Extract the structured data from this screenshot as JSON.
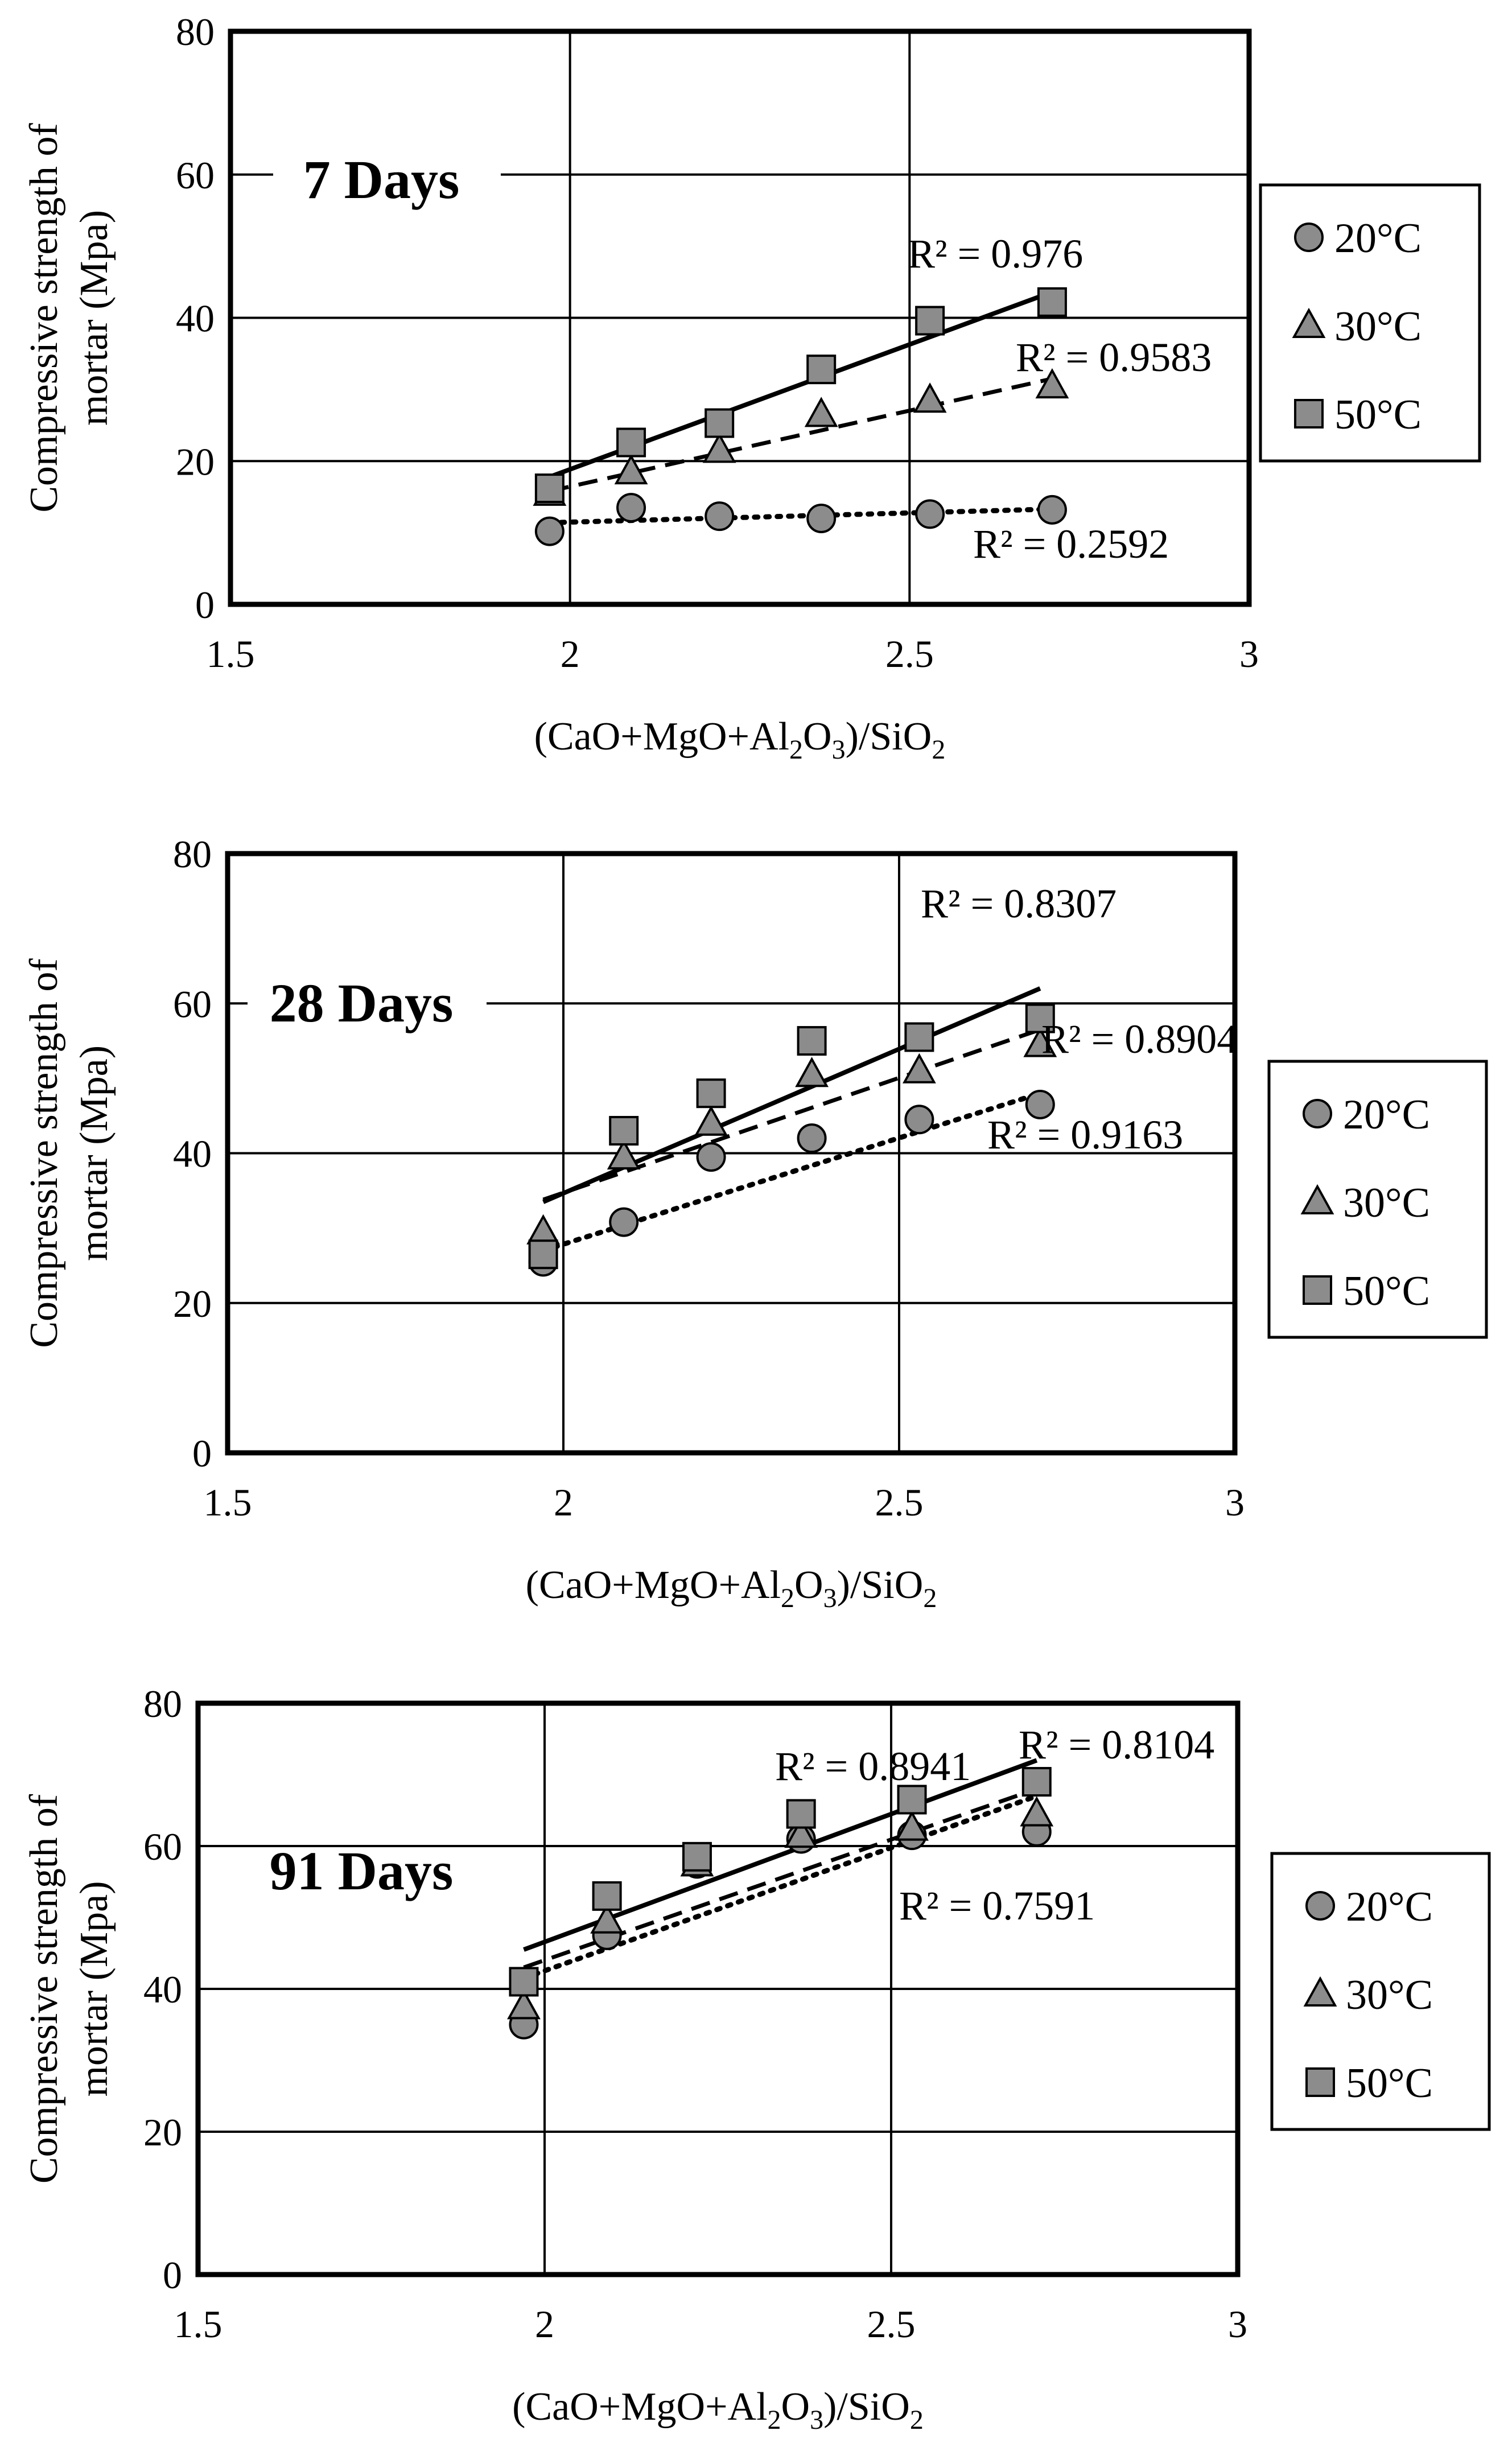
{
  "chart_data": [
    {
      "type": "scatter",
      "title": "7 Days",
      "xlabel": "(CaO+MgO+Al2O3)/SiO2",
      "xlabel_parts": [
        "(CaO+MgO+Al",
        "2",
        "O",
        "3",
        ")/SiO",
        "2"
      ],
      "ylabel_lines": [
        "Compressive strength of",
        "mortar (Mpa)"
      ],
      "xlim": [
        1.5,
        3
      ],
      "ylim": [
        0,
        80
      ],
      "xticks": [
        "1.5",
        "2",
        "2.5",
        "3"
      ],
      "yticks": [
        "0",
        "20",
        "40",
        "60",
        "80"
      ],
      "grid": "on",
      "legend_position": "right",
      "series": [
        {
          "name": "20°C",
          "marker": "circle",
          "x": [
            1.97,
            2.09,
            2.22,
            2.37,
            2.53,
            2.71
          ],
          "y": [
            10.2,
            13.5,
            12.3,
            12.0,
            12.6,
            13.2
          ],
          "fit": [
            11.4,
            13.3
          ],
          "fit_style": "dotted",
          "r2": "R² = 0.2592"
        },
        {
          "name": "30°C",
          "marker": "triangle",
          "x": [
            1.97,
            2.09,
            2.22,
            2.37,
            2.53,
            2.71
          ],
          "y": [
            15.5,
            18.5,
            21.5,
            26.5,
            28.5,
            30.5
          ],
          "fit": [
            15.8,
            31.5
          ],
          "fit_style": "dashed",
          "r2": "R² = 0.9583"
        },
        {
          "name": "50°C",
          "marker": "square",
          "x": [
            1.97,
            2.09,
            2.22,
            2.37,
            2.53,
            2.71
          ],
          "y": [
            16.2,
            22.6,
            25.3,
            32.8,
            39.6,
            42.2
          ],
          "fit": [
            17.8,
            43.6
          ],
          "fit_style": "solid",
          "r2": "R² = 0.976"
        }
      ]
    },
    {
      "type": "scatter",
      "title": "28 Days",
      "xlabel": "(CaO+MgO+Al2O3)/SiO2",
      "xlabel_parts": [
        "(CaO+MgO+Al",
        "2",
        "O",
        "3",
        ")/SiO",
        "2"
      ],
      "ylabel_lines": [
        "Compressive strength of",
        "mortar (Mpa)"
      ],
      "xlim": [
        1.5,
        3
      ],
      "ylim": [
        0,
        80
      ],
      "xticks": [
        "1.5",
        "2",
        "2.5",
        "3"
      ],
      "yticks": [
        "0",
        "20",
        "40",
        "60",
        "80"
      ],
      "grid": "on",
      "legend_position": "right",
      "series": [
        {
          "name": "20°C",
          "marker": "circle",
          "x": [
            1.97,
            2.09,
            2.22,
            2.37,
            2.53,
            2.71
          ],
          "y": [
            25.5,
            30.8,
            39.5,
            42.0,
            44.5,
            46.5
          ],
          "fit": [
            27.0,
            48.0
          ],
          "fit_style": "dotted",
          "r2": "R² = 0.9163"
        },
        {
          "name": "30°C",
          "marker": "triangle",
          "x": [
            1.97,
            2.09,
            2.22,
            2.37,
            2.53,
            2.71
          ],
          "y": [
            29.5,
            39.5,
            44.0,
            50.5,
            51.0,
            54.5
          ],
          "fit": [
            33.8,
            56.5
          ],
          "fit_style": "dashed",
          "r2": "R² = 0.8904"
        },
        {
          "name": "50°C",
          "marker": "square",
          "x": [
            1.97,
            2.09,
            2.22,
            2.37,
            2.53,
            2.71
          ],
          "y": [
            26.5,
            43.0,
            48.0,
            55.0,
            55.5,
            58.0
          ],
          "fit": [
            33.5,
            62.0
          ],
          "fit_style": "solid",
          "r2": "R² = 0.8307"
        }
      ]
    },
    {
      "type": "scatter",
      "title": "91 Days",
      "xlabel": "(CaO+MgO+Al2O3)/SiO2",
      "xlabel_parts": [
        "(CaO+MgO+Al",
        "2",
        "O",
        "3",
        ")/SiO",
        "2"
      ],
      "ylabel_lines": [
        "Compressive strength of",
        "mortar (Mpa)"
      ],
      "xlim": [
        1.5,
        3
      ],
      "ylim": [
        0,
        80
      ],
      "xticks": [
        "1.5",
        "2",
        "2.5",
        "3"
      ],
      "yticks": [
        "0",
        "20",
        "40",
        "60",
        "80"
      ],
      "grid": "on",
      "legend_position": "right",
      "series": [
        {
          "name": "20°C",
          "marker": "circle",
          "x": [
            1.97,
            2.09,
            2.22,
            2.37,
            2.53,
            2.71
          ],
          "y": [
            35.0,
            47.5,
            57.5,
            61.0,
            61.5,
            62.0
          ],
          "fit": [
            41.5,
            67.0
          ],
          "fit_style": "dotted",
          "r2": "R² = 0.7591"
        },
        {
          "name": "30°C",
          "marker": "triangle",
          "x": [
            1.97,
            2.09,
            2.22,
            2.37,
            2.53,
            2.71
          ],
          "y": [
            37.5,
            49.5,
            57.5,
            61.5,
            62.5,
            64.5
          ],
          "fit": [
            43.0,
            68.0
          ],
          "fit_style": "dashed",
          "r2": "R² = 0.8104"
        },
        {
          "name": "50°C",
          "marker": "square",
          "x": [
            1.97,
            2.09,
            2.22,
            2.37,
            2.53,
            2.71
          ],
          "y": [
            41.0,
            53.0,
            58.5,
            64.5,
            66.5,
            69.0
          ],
          "fit": [
            45.5,
            72.0
          ],
          "fit_style": "solid",
          "r2": "R² = 0.8941"
        }
      ]
    }
  ]
}
